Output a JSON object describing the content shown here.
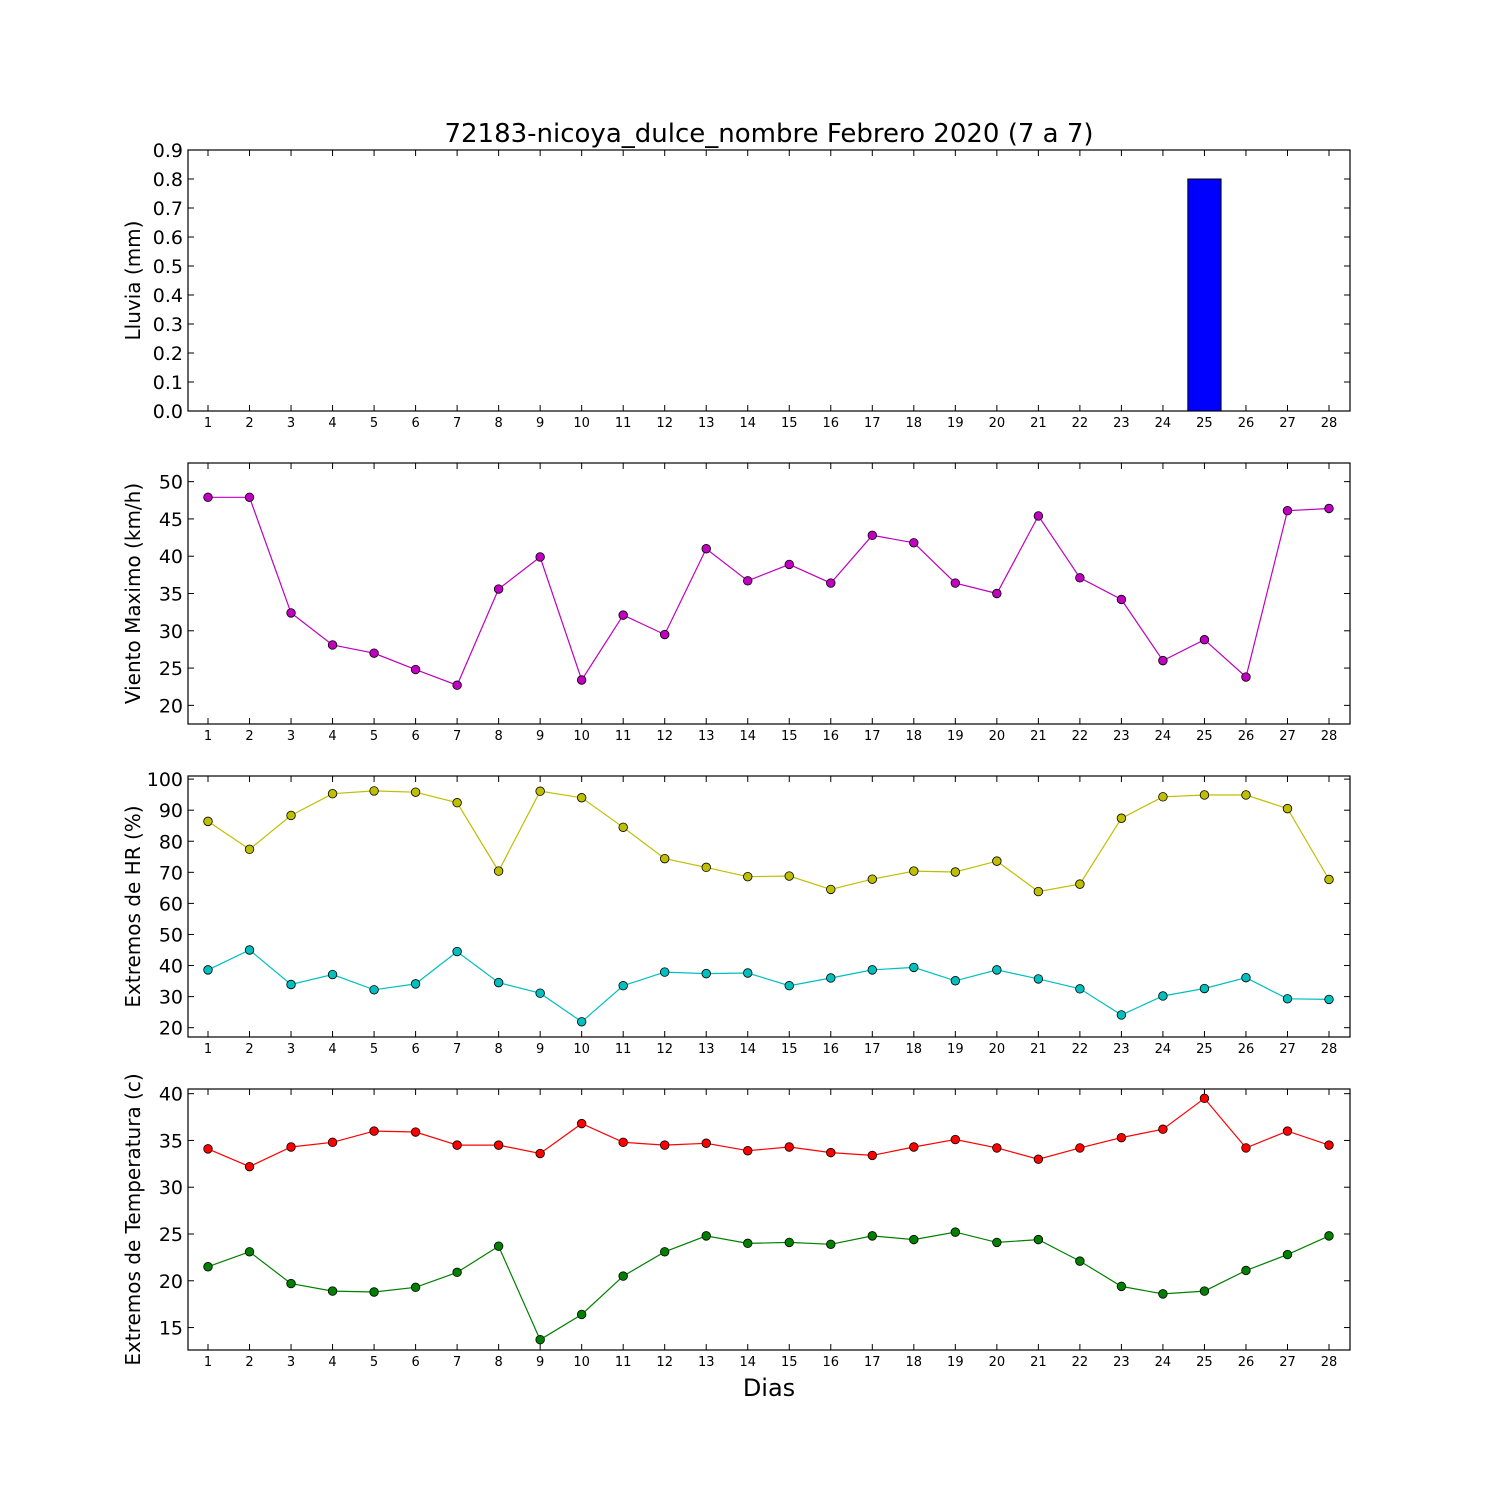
{
  "chart_data": {
    "type": "line",
    "title": "72183-nicoya_dulce_nombre Febrero 2020  (7 a 7)",
    "xlabel": "Dias",
    "days": [
      1,
      2,
      3,
      4,
      5,
      6,
      7,
      8,
      9,
      10,
      11,
      12,
      13,
      14,
      15,
      16,
      17,
      18,
      19,
      20,
      21,
      22,
      23,
      24,
      25,
      26,
      27,
      28
    ],
    "panels": [
      {
        "type": "bar",
        "ylabel": "Lluvia (mm)",
        "ylim": [
          0,
          0.9
        ],
        "yticks": [
          0.0,
          0.1,
          0.2,
          0.3,
          0.4,
          0.5,
          0.6,
          0.7,
          0.8,
          0.9
        ],
        "tick_decimals": 1,
        "series": [
          {
            "color": "#0000ff",
            "values": [
              0,
              0,
              0,
              0,
              0,
              0,
              0,
              0,
              0,
              0,
              0,
              0,
              0,
              0,
              0,
              0,
              0,
              0,
              0,
              0,
              0,
              0,
              0,
              0,
              0.8,
              0,
              0,
              0
            ]
          }
        ]
      },
      {
        "type": "line",
        "ylabel": "Viento Maximo (km/h)",
        "ylim": [
          17.5,
          52.5
        ],
        "yticks": [
          20,
          25,
          30,
          35,
          40,
          45,
          50
        ],
        "tick_decimals": 0,
        "series": [
          {
            "color": "#bf00bf",
            "values": [
              47.9,
              47.9,
              32.4,
              28.1,
              27.0,
              24.8,
              22.7,
              35.6,
              39.9,
              23.4,
              32.1,
              29.5,
              41.0,
              36.7,
              38.9,
              36.4,
              42.8,
              41.8,
              36.4,
              35.0,
              45.4,
              37.1,
              34.2,
              26.0,
              28.8,
              23.8,
              46.1,
              46.4
            ]
          }
        ]
      },
      {
        "type": "line",
        "ylabel": "Extremos de HR (%)",
        "ylim": [
          17,
          101
        ],
        "yticks": [
          20,
          30,
          40,
          50,
          60,
          70,
          80,
          90,
          100
        ],
        "tick_decimals": 0,
        "series": [
          {
            "color": "#bfbf00",
            "values": [
              86.4,
              77.4,
              88.3,
              95.3,
              96.2,
              95.8,
              92.4,
              70.4,
              96.1,
              94.0,
              84.5,
              74.4,
              71.6,
              68.6,
              68.8,
              64.5,
              67.8,
              70.4,
              70.1,
              73.6,
              63.8,
              66.2,
              87.4,
              94.3,
              94.9,
              94.9,
              90.5,
              67.7
            ]
          },
          {
            "color": "#00bfbf",
            "values": [
              38.6,
              45.0,
              33.9,
              37.1,
              32.2,
              34.1,
              44.5,
              34.5,
              31.1,
              21.9,
              33.5,
              37.9,
              37.4,
              37.6,
              33.5,
              36.0,
              38.6,
              39.4,
              35.1,
              38.6,
              35.7,
              32.5,
              24.1,
              30.2,
              32.6,
              36.1,
              29.3,
              29.1
            ]
          }
        ]
      },
      {
        "type": "line",
        "ylabel": "Extremos de Temperatura (c)",
        "ylim": [
          12.6,
          40.5
        ],
        "yticks": [
          15,
          20,
          25,
          30,
          35,
          40
        ],
        "tick_decimals": 0,
        "series": [
          {
            "color": "#ff0000",
            "values": [
              34.1,
              32.2,
              34.3,
              34.8,
              36.0,
              35.9,
              34.5,
              34.5,
              33.6,
              36.8,
              34.8,
              34.5,
              34.7,
              33.9,
              34.3,
              33.7,
              33.4,
              34.3,
              35.1,
              34.2,
              33.0,
              34.2,
              35.3,
              36.2,
              39.5,
              34.2,
              36.0,
              34.5
            ]
          },
          {
            "color": "#008000",
            "values": [
              21.5,
              23.1,
              19.7,
              18.9,
              18.8,
              19.3,
              20.9,
              23.7,
              13.7,
              16.4,
              20.5,
              23.1,
              24.8,
              24.0,
              24.1,
              23.9,
              24.8,
              24.4,
              25.2,
              24.1,
              24.4,
              22.1,
              19.4,
              18.6,
              18.9,
              21.1,
              22.8,
              24.8
            ]
          }
        ]
      }
    ]
  }
}
